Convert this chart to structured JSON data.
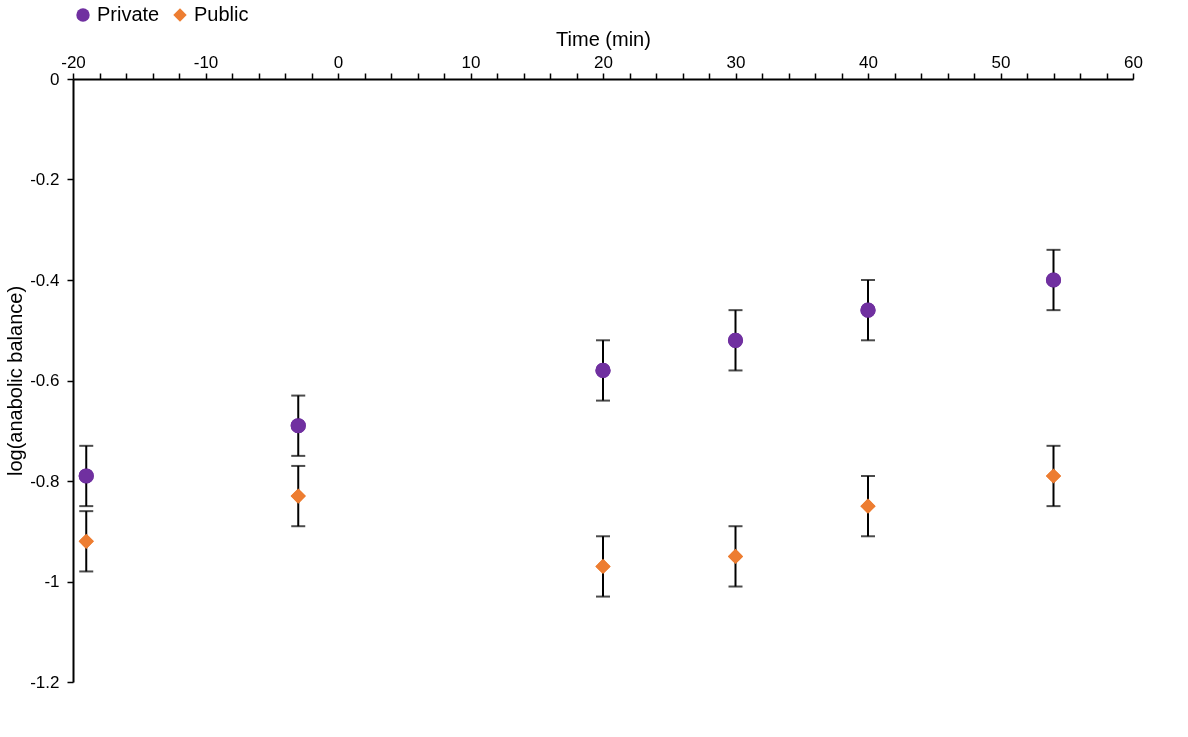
{
  "chart_data": {
    "type": "scatter",
    "xlabel": "Time (min)",
    "ylabel": "log(anabolic balance)",
    "legend": "top",
    "grid": false,
    "x": [
      -19,
      -3,
      20,
      30,
      40,
      54
    ],
    "xlim": [
      -20,
      60
    ],
    "xticks": [
      -20,
      {
        "value": -18,
        "label": null
      },
      {
        "value": -16,
        "label": null
      },
      {
        "value": -14,
        "label": null
      },
      {
        "value": -12,
        "label": null
      },
      -10,
      {
        "value": -8,
        "label": null
      },
      {
        "value": -6,
        "label": null
      },
      {
        "value": -4,
        "label": null
      },
      {
        "value": -2,
        "label": null
      },
      0,
      {
        "value": 2,
        "label": null
      },
      {
        "value": 4,
        "label": null
      },
      {
        "value": 6,
        "label": null
      },
      {
        "value": 8,
        "label": null
      },
      10,
      {
        "value": 12,
        "label": null
      },
      {
        "value": 14,
        "label": null
      },
      {
        "value": 16,
        "label": null
      },
      {
        "value": 18,
        "label": null
      },
      20,
      {
        "value": 22,
        "label": null
      },
      {
        "value": 24,
        "label": null
      },
      {
        "value": 26,
        "label": null
      },
      {
        "value": 28,
        "label": null
      },
      30,
      {
        "value": 32,
        "label": null
      },
      {
        "value": 34,
        "label": null
      },
      {
        "value": 36,
        "label": null
      },
      {
        "value": 38,
        "label": null
      },
      40,
      {
        "value": 42,
        "label": null
      },
      {
        "value": 44,
        "label": null
      },
      {
        "value": 46,
        "label": null
      },
      {
        "value": 48,
        "label": null
      },
      50,
      {
        "value": 52,
        "label": null
      },
      {
        "value": 54,
        "label": null
      },
      {
        "value": 56,
        "label": null
      },
      {
        "value": 58,
        "label": null
      },
      60
    ],
    "ylim": [
      -1.2,
      0
    ],
    "yticks": [
      -1.2,
      -1,
      -0.8,
      -0.6,
      -0.4,
      -0.2,
      0
    ],
    "series": [
      {
        "name": "Private",
        "color": "#7030a0",
        "marker": "circle",
        "values": [
          -0.79,
          -0.69,
          -0.58,
          -0.52,
          -0.46,
          -0.4
        ],
        "errors": [
          0.06,
          0.06,
          0.06,
          0.06,
          0.06,
          0.06
        ]
      },
      {
        "name": "Public",
        "color": "#ed7d31",
        "marker": "diamond",
        "values": [
          -0.92,
          -0.83,
          -0.97,
          -0.95,
          -0.85,
          -0.79
        ],
        "errors": [
          0.06,
          0.06,
          0.06,
          0.06,
          0.06,
          0.06
        ]
      }
    ]
  }
}
